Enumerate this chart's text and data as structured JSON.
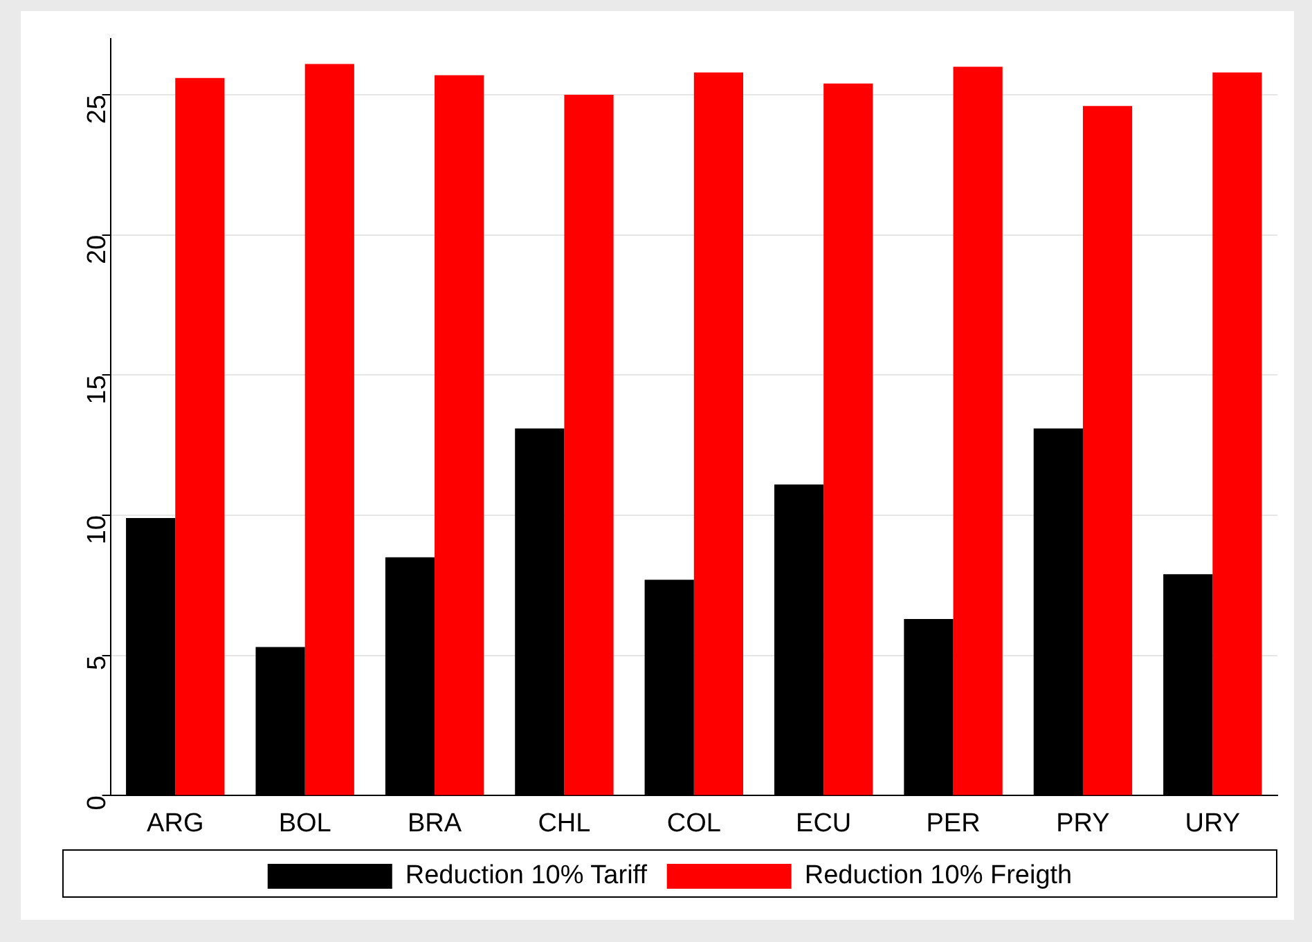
{
  "chart_data": {
    "type": "bar",
    "categories": [
      "ARG",
      "BOL",
      "BRA",
      "CHL",
      "COL",
      "ECU",
      "PER",
      "PRY",
      "URY"
    ],
    "series": [
      {
        "name": "Reduction 10% Tariff",
        "color": "#000000",
        "values": [
          9.9,
          5.3,
          8.5,
          13.1,
          7.7,
          11.1,
          6.3,
          13.1,
          7.9
        ]
      },
      {
        "name": "Reduction 10% Freigth",
        "color": "#ff0000",
        "values": [
          25.6,
          26.1,
          25.7,
          25.0,
          25.8,
          25.4,
          26.0,
          24.6,
          25.8
        ]
      }
    ],
    "ylim": [
      0,
      27
    ],
    "yticks": [
      0,
      5,
      10,
      15,
      20,
      25
    ],
    "grid": "y",
    "legend": "bottom"
  }
}
